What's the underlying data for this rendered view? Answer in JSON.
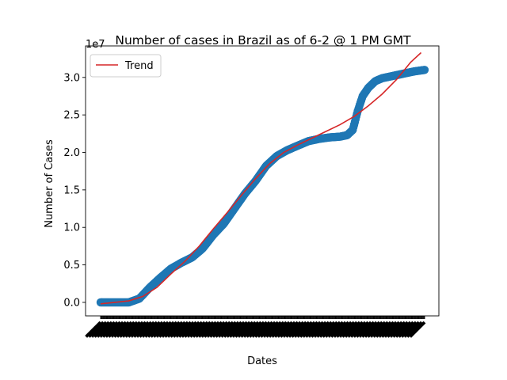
{
  "chart_data": {
    "type": "scatter",
    "title": "Number of cases in Brazil as of 6-2 @ 1 PM GMT",
    "xlabel": "Dates",
    "ylabel": "Number of Cases",
    "y_offset_label": "1e7",
    "y_unit_scale": 10000000,
    "ylim": [
      -0.18,
      3.42
    ],
    "yticks": [
      0.0,
      0.5,
      1.0,
      1.5,
      2.0,
      2.5,
      3.0
    ],
    "ytick_labels": [
      "0.0",
      "0.5",
      "1.0",
      "1.5",
      "2.0",
      "2.5",
      "3.0"
    ],
    "grid": false,
    "legend": {
      "placement": "top-left",
      "entries": [
        "Trend"
      ]
    },
    "xtick_labels_note": "dense overlapping rotated date labels (illegible)",
    "x_day_range": [
      0,
      460
    ],
    "series": [
      {
        "kind": "scatter",
        "color": "#1f77b4",
        "points": [
          [
            0,
            0.0
          ],
          [
            40,
            0.0
          ],
          [
            55,
            0.05
          ],
          [
            70,
            0.2
          ],
          [
            85,
            0.33
          ],
          [
            100,
            0.45
          ],
          [
            115,
            0.53
          ],
          [
            130,
            0.6
          ],
          [
            145,
            0.72
          ],
          [
            160,
            0.9
          ],
          [
            175,
            1.05
          ],
          [
            190,
            1.25
          ],
          [
            205,
            1.45
          ],
          [
            220,
            1.62
          ],
          [
            235,
            1.82
          ],
          [
            250,
            1.95
          ],
          [
            265,
            2.03
          ],
          [
            280,
            2.09
          ],
          [
            295,
            2.15
          ],
          [
            310,
            2.18
          ],
          [
            325,
            2.2
          ],
          [
            340,
            2.21
          ],
          [
            350,
            2.23
          ],
          [
            358,
            2.3
          ],
          [
            365,
            2.55
          ],
          [
            372,
            2.75
          ],
          [
            380,
            2.86
          ],
          [
            390,
            2.95
          ],
          [
            400,
            2.99
          ],
          [
            415,
            3.02
          ],
          [
            430,
            3.05
          ],
          [
            445,
            3.08
          ],
          [
            460,
            3.1
          ]
        ]
      },
      {
        "name": "Trend",
        "kind": "line",
        "color": "#d62728",
        "points": [
          [
            0,
            -0.02
          ],
          [
            20,
            0.0
          ],
          [
            40,
            0.02
          ],
          [
            60,
            0.08
          ],
          [
            80,
            0.2
          ],
          [
            100,
            0.38
          ],
          [
            120,
            0.55
          ],
          [
            140,
            0.75
          ],
          [
            160,
            0.98
          ],
          [
            180,
            1.2
          ],
          [
            200,
            1.43
          ],
          [
            220,
            1.65
          ],
          [
            240,
            1.85
          ],
          [
            260,
            2.0
          ],
          [
            280,
            2.1
          ],
          [
            300,
            2.19
          ],
          [
            320,
            2.28
          ],
          [
            340,
            2.37
          ],
          [
            360,
            2.48
          ],
          [
            380,
            2.62
          ],
          [
            400,
            2.78
          ],
          [
            420,
            2.97
          ],
          [
            440,
            3.2
          ],
          [
            455,
            3.33
          ]
        ]
      }
    ]
  }
}
